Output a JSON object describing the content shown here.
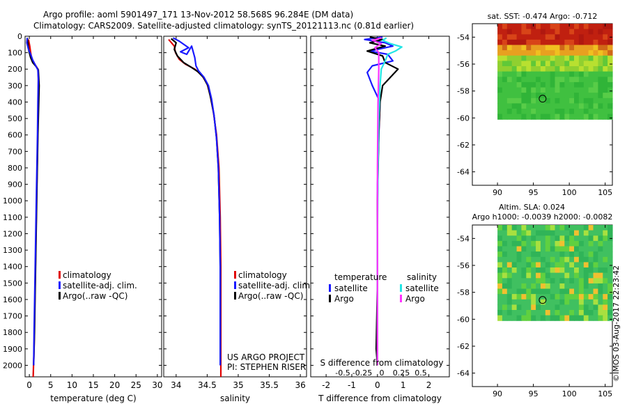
{
  "header": {
    "line1": "Argo profile: aoml 5901497_171 13-Nov-2012 58.568S 96.284E (DM data)",
    "line2": "Climatology: CARS2009. Satellite-adjusted climatology: synTS_20121113.nc (0.81d earlier)"
  },
  "credits": {
    "project": "US ARGO PROJECT",
    "pi": "PI: STEPHEN RISER",
    "stamp": "©IMOS 03-Aug-2017 22:23:42"
  },
  "colors": {
    "climatology": "#e00000",
    "satellite": "#1a1aff",
    "argo": "#000000",
    "sal_satellite": "#22e5e5",
    "sal_argo": "#ff33ff"
  },
  "chart_data": [
    {
      "type": "line",
      "xlabel": "temperature (deg C)",
      "xlim": [
        -1,
        31
      ],
      "xticks": [
        0,
        5,
        10,
        15,
        20,
        25,
        30
      ],
      "ylim": [
        2070,
        0
      ],
      "yticks": [
        0,
        100,
        200,
        300,
        400,
        500,
        600,
        700,
        800,
        900,
        1000,
        1100,
        1200,
        1300,
        1400,
        1500,
        1600,
        1700,
        1800,
        1900,
        2000
      ],
      "legend": [
        "climatology",
        "satellite-adj. clim.",
        "Argo(..raw -QC)"
      ],
      "series": [
        {
          "name": "climatology",
          "color": "#e00000",
          "points": [
            [
              -0.2,
              20
            ],
            [
              0.1,
              60
            ],
            [
              0.3,
              100
            ],
            [
              0.6,
              140
            ],
            [
              1.4,
              175
            ],
            [
              2.0,
              200
            ],
            [
              2.1,
              250
            ],
            [
              2.1,
              350
            ],
            [
              2.0,
              500
            ],
            [
              1.9,
              700
            ],
            [
              1.7,
              1000
            ],
            [
              1.5,
              1300
            ],
            [
              1.3,
              1600
            ],
            [
              1.1,
              1900
            ],
            [
              0.9,
              2070
            ]
          ]
        },
        {
          "name": "Argo(..raw -QC)",
          "color": "#000000",
          "points": [
            [
              -0.5,
              10
            ],
            [
              -0.3,
              50
            ],
            [
              -0.1,
              90
            ],
            [
              0.3,
              130
            ],
            [
              0.8,
              160
            ],
            [
              1.6,
              185
            ],
            [
              2.1,
              205
            ],
            [
              2.2,
              250
            ],
            [
              2.3,
              300
            ],
            [
              2.2,
              400
            ],
            [
              2.0,
              600
            ],
            [
              1.8,
              900
            ],
            [
              1.6,
              1200
            ],
            [
              1.4,
              1500
            ],
            [
              1.2,
              1800
            ],
            [
              1.0,
              2000
            ]
          ]
        },
        {
          "name": "satellite-adj. clim.",
          "color": "#1a1aff",
          "points": [
            [
              -0.5,
              10
            ],
            [
              -0.6,
              40
            ],
            [
              -0.2,
              80
            ],
            [
              0.3,
              110
            ],
            [
              0.8,
              145
            ],
            [
              1.5,
              180
            ],
            [
              2.0,
              205
            ],
            [
              2.1,
              260
            ],
            [
              2.0,
              400
            ],
            [
              1.9,
              600
            ],
            [
              1.7,
              900
            ],
            [
              1.5,
              1200
            ],
            [
              1.3,
              1500
            ],
            [
              1.1,
              1800
            ],
            [
              1.0,
              2000
            ]
          ]
        }
      ]
    },
    {
      "type": "line",
      "xlabel": "salinity",
      "xlim": [
        33.8,
        36.1
      ],
      "xticks": [
        34,
        34.5,
        35,
        35.5,
        36
      ],
      "ylim": [
        2070,
        0
      ],
      "legend": [
        "climatology",
        "satellite-adj. clim.",
        "Argo(..raw -QC)"
      ],
      "series": [
        {
          "name": "climatology",
          "color": "#e00000",
          "points": [
            [
              33.88,
              20
            ],
            [
              33.97,
              60
            ],
            [
              33.99,
              100
            ],
            [
              34.05,
              140
            ],
            [
              34.15,
              170
            ],
            [
              34.3,
              200
            ],
            [
              34.42,
              240
            ],
            [
              34.5,
              290
            ],
            [
              34.55,
              360
            ],
            [
              34.6,
              460
            ],
            [
              34.65,
              600
            ],
            [
              34.69,
              800
            ],
            [
              34.71,
              1100
            ],
            [
              34.72,
              1400
            ],
            [
              34.72,
              1700
            ],
            [
              34.72,
              2070
            ]
          ]
        },
        {
          "name": "Argo(..raw -QC)",
          "color": "#000000",
          "points": [
            [
              33.92,
              15
            ],
            [
              34.0,
              40
            ],
            [
              33.97,
              80
            ],
            [
              34.02,
              120
            ],
            [
              34.12,
              160
            ],
            [
              34.25,
              190
            ],
            [
              34.35,
              215
            ],
            [
              34.44,
              250
            ],
            [
              34.51,
              300
            ],
            [
              34.56,
              380
            ],
            [
              34.61,
              480
            ],
            [
              34.65,
              620
            ],
            [
              34.68,
              800
            ],
            [
              34.7,
              1100
            ],
            [
              34.71,
              1400
            ],
            [
              34.71,
              1700
            ],
            [
              34.71,
              2000
            ]
          ]
        },
        {
          "name": "satellite-adj. clim.",
          "color": "#1a1aff",
          "points": [
            [
              33.95,
              10
            ],
            [
              34.05,
              30
            ],
            [
              34.2,
              70
            ],
            [
              34.07,
              95
            ],
            [
              34.17,
              110
            ],
            [
              34.25,
              60
            ],
            [
              34.3,
              130
            ],
            [
              34.32,
              180
            ],
            [
              34.36,
              210
            ],
            [
              34.45,
              250
            ],
            [
              34.52,
              300
            ],
            [
              34.57,
              380
            ],
            [
              34.61,
              480
            ],
            [
              34.65,
              620
            ],
            [
              34.68,
              800
            ],
            [
              34.7,
              1100
            ],
            [
              34.71,
              1400
            ],
            [
              34.71,
              1700
            ],
            [
              34.71,
              2000
            ]
          ]
        }
      ]
    },
    {
      "type": "line",
      "xlabel": "T difference from climatology",
      "xlabel2": "S difference from climatology",
      "xlim": [
        -2.6,
        2.8
      ],
      "xticks": [
        -2,
        -1,
        0,
        1,
        2
      ],
      "xticks2": [
        -0.5,
        -0.25,
        0,
        0.25,
        0.5
      ],
      "ylim": [
        2070,
        0
      ],
      "legend_titles": [
        "temperature",
        "salinity"
      ],
      "legend": [
        "satellite",
        "Argo",
        "satellite",
        "Argo"
      ],
      "series": [
        {
          "name": "satellite",
          "group": "temperature",
          "color": "#1a1aff",
          "points": [
            [
              0.2,
              5
            ],
            [
              -0.5,
              20
            ],
            [
              0.3,
              40
            ],
            [
              0.6,
              60
            ],
            [
              -0.3,
              90
            ],
            [
              0.4,
              110
            ],
            [
              0.6,
              150
            ],
            [
              -0.2,
              180
            ],
            [
              -0.4,
              220
            ],
            [
              -0.2,
              300
            ],
            [
              0.1,
              400
            ],
            [
              0.05,
              600
            ],
            [
              0.0,
              900
            ],
            [
              0.0,
              1200
            ],
            [
              0.0,
              1500
            ],
            [
              0.0,
              1800
            ],
            [
              0.0,
              2000
            ]
          ]
        },
        {
          "name": "Argo",
          "group": "temperature",
          "color": "#000000",
          "points": [
            [
              -0.3,
              5
            ],
            [
              0.2,
              20
            ],
            [
              -0.3,
              40
            ],
            [
              0.3,
              60
            ],
            [
              -0.4,
              90
            ],
            [
              0.2,
              120
            ],
            [
              0.3,
              160
            ],
            [
              0.8,
              200
            ],
            [
              0.5,
              250
            ],
            [
              0.2,
              300
            ],
            [
              0.1,
              400
            ],
            [
              0.05,
              600
            ],
            [
              0.0,
              1000
            ],
            [
              0.0,
              1500
            ],
            [
              -0.05,
              1900
            ],
            [
              0.0,
              2000
            ]
          ]
        },
        {
          "name": "satellite",
          "group": "salinity",
          "color": "#22e5e5",
          "points": [
            [
              0.35,
              10
            ],
            [
              0.2,
              25
            ],
            [
              0.5,
              45
            ],
            [
              0.95,
              65
            ],
            [
              0.7,
              90
            ],
            [
              0.4,
              110
            ],
            [
              0.3,
              150
            ],
            [
              0.15,
              200
            ],
            [
              0.1,
              300
            ],
            [
              0.05,
              500
            ],
            [
              0.02,
              800
            ],
            [
              0.0,
              1200
            ],
            [
              0.0,
              1600
            ],
            [
              0.0,
              2000
            ]
          ]
        },
        {
          "name": "Argo",
          "group": "salinity",
          "color": "#ff33ff",
          "points": [
            [
              0.15,
              10
            ],
            [
              -0.2,
              25
            ],
            [
              0.15,
              45
            ],
            [
              -0.1,
              70
            ],
            [
              0.05,
              100
            ],
            [
              0.05,
              200
            ],
            [
              0.02,
              400
            ],
            [
              0.0,
              800
            ],
            [
              0.0,
              1400
            ],
            [
              0.0,
              2000
            ]
          ]
        }
      ]
    },
    {
      "type": "heatmap",
      "title": "sat. SST: -0.474 Argo: -0.712",
      "xlim": [
        86.5,
        106
      ],
      "xticks": [
        90,
        95,
        100,
        105
      ],
      "ylim": [
        -65,
        -53
      ],
      "yticks": [
        -54,
        -56,
        -58,
        -60,
        -62,
        -64
      ],
      "marker": {
        "lon": 96.284,
        "lat": -58.568
      }
    },
    {
      "type": "heatmap",
      "title": "Altim. SLA: 0.024",
      "subtitle": "Argo h1000: -0.0039 h2000: -0.0082",
      "xlim": [
        86.5,
        106
      ],
      "xticks": [
        90,
        95,
        100,
        105
      ],
      "ylim": [
        -65,
        -53
      ],
      "yticks": [
        -54,
        -56,
        -58,
        -60,
        -62,
        -64
      ],
      "marker": {
        "lon": 96.284,
        "lat": -58.568
      }
    }
  ]
}
